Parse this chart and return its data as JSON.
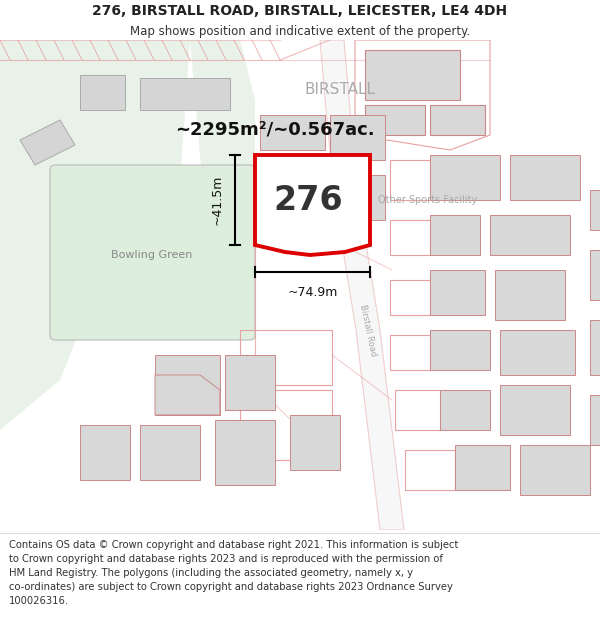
{
  "title_line1": "276, BIRSTALL ROAD, BIRSTALL, LEICESTER, LE4 4DH",
  "title_line2": "Map shows position and indicative extent of the property.",
  "footer_text": "Contains OS data © Crown copyright and database right 2021. This information is subject\nto Crown copyright and database rights 2023 and is reproduced with the permission of\nHM Land Registry. The polygons (including the associated geometry, namely x, y\nco-ordinates) are subject to Crown copyright and database rights 2023 Ordnance Survey\n100026316.",
  "area_label": "~2295m²/~0.567ac.",
  "width_label": "~74.9m",
  "height_label": "~41.5m",
  "plot_number": "276",
  "place_name": "BIRSTALL",
  "road_name": "Birstall Road",
  "sports_label": "Other Sports Facility",
  "birstall_road_label": "Birstall Road",
  "bowling_label": "Bowling Green",
  "bg_color": "#ffffff",
  "map_bg": "#ffffff",
  "green_color": "#e8f2e8",
  "road_outline": "#e8a0a0",
  "plot_outline_color": "#dd0000",
  "building_fill": "#d8d8d8",
  "building_outline": "#cc8888",
  "dim_color": "#000000",
  "label_color": "#aaaaaa",
  "place_color": "#999999"
}
